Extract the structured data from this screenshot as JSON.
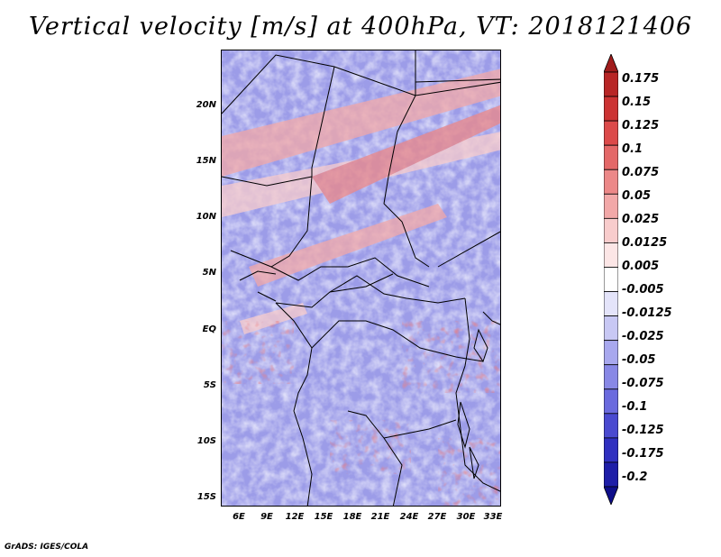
{
  "title": "Vertical velocity [m/s] at 400hPa, VT: 2018121406",
  "latitude_labels": [
    "20N",
    "15N",
    "10N",
    "5N",
    "EQ",
    "5S",
    "10S",
    "15S"
  ],
  "longitude_labels": [
    "6E",
    "9E",
    "12E",
    "15E",
    "18E",
    "21E",
    "24E",
    "27E",
    "30E",
    "33E"
  ],
  "colorbar": {
    "labels": [
      "0.175",
      "0.15",
      "0.125",
      "0.1",
      "0.075",
      "0.05",
      "0.025",
      "0.0125",
      "0.005",
      "-0.005",
      "-0.0125",
      "-0.025",
      "-0.05",
      "-0.075",
      "-0.1",
      "-0.125",
      "-0.175",
      "-0.2"
    ],
    "colors": [
      "#a01c1c",
      "#b82626",
      "#cc3333",
      "#dc4a4a",
      "#e46868",
      "#ec8888",
      "#f2a8a8",
      "#f8cccc",
      "#fce6e6",
      "#ffffff",
      "#e4e4fa",
      "#c8c8f4",
      "#a8a8ee",
      "#8888e6",
      "#6a6ade",
      "#4a4ad0",
      "#3030c0",
      "#1e1ea8",
      "#0e0e8a"
    ]
  },
  "footer": "GrADS: IGES/COLA"
}
